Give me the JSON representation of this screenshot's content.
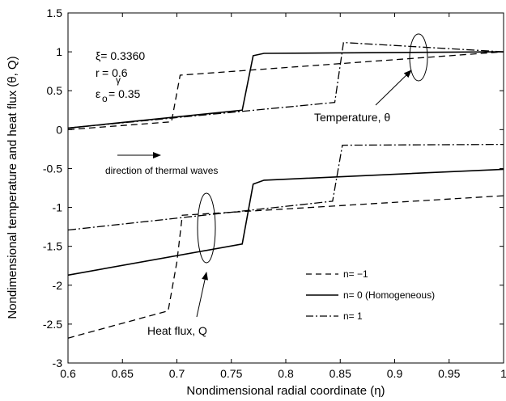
{
  "chart_data": {
    "type": "line",
    "xlabel": "Nondimensional radial coordinate (η)",
    "ylabel": "Nondimensional temperature and heat flux (θ, Q)",
    "xlim": [
      0.6,
      1.0
    ],
    "ylim": [
      -3,
      1.5
    ],
    "xticks": [
      "0.6",
      "0.65",
      "0.7",
      "0.75",
      "0.8",
      "0.85",
      "0.9",
      "0.95",
      "1"
    ],
    "yticks": [
      "-3",
      "-2.5",
      "-2",
      "-1.5",
      "-1",
      "-0.5",
      "0",
      "0.5",
      "1",
      "1.5"
    ],
    "grid": false,
    "legend_position": "bottom-right",
    "legend": [
      {
        "label": "n= −1",
        "style": "dashed"
      },
      {
        "label": "n= 0 (Homogeneous)",
        "style": "solid"
      },
      {
        "label": "n= 1",
        "style": "dashdot"
      }
    ],
    "series": [
      {
        "style": "dashed",
        "quantity": "temperature",
        "x": [
          0.6,
          0.695,
          0.703,
          1.0
        ],
        "y": [
          0.0,
          0.1,
          0.7,
          1.0
        ]
      },
      {
        "style": "solid",
        "quantity": "temperature",
        "x": [
          0.6,
          0.76,
          0.77,
          0.78,
          1.0
        ],
        "y": [
          0.02,
          0.25,
          0.95,
          0.98,
          1.0
        ]
      },
      {
        "style": "dashdot",
        "quantity": "temperature",
        "x": [
          0.6,
          0.845,
          0.853,
          1.0
        ],
        "y": [
          0.02,
          0.35,
          1.12,
          1.0
        ]
      },
      {
        "style": "dashed",
        "quantity": "heat flux",
        "x": [
          0.6,
          0.692,
          0.7,
          0.705,
          1.0
        ],
        "y": [
          -2.68,
          -2.33,
          -1.7,
          -1.1,
          -0.85
        ]
      },
      {
        "style": "solid",
        "quantity": "heat flux",
        "x": [
          0.6,
          0.76,
          0.77,
          0.78,
          1.0
        ],
        "y": [
          -1.87,
          -1.47,
          -0.7,
          -0.65,
          -0.51
        ]
      },
      {
        "style": "dashdot",
        "quantity": "heat flux",
        "x": [
          0.6,
          0.843,
          0.852,
          1.0
        ],
        "y": [
          -1.29,
          -0.92,
          -0.2,
          -0.19
        ]
      }
    ],
    "annotations": {
      "xi": "ξ= 0.3360",
      "r": "r",
      "r_sub": "γ",
      "r_value": "= 0.6",
      "eps": "ε",
      "eps_sub": "o",
      "eps_value": "= 0.35",
      "temperature": "Temperature, θ",
      "heat_flux": "Heat flux, Q",
      "direction": "direction of thermal waves"
    }
  }
}
